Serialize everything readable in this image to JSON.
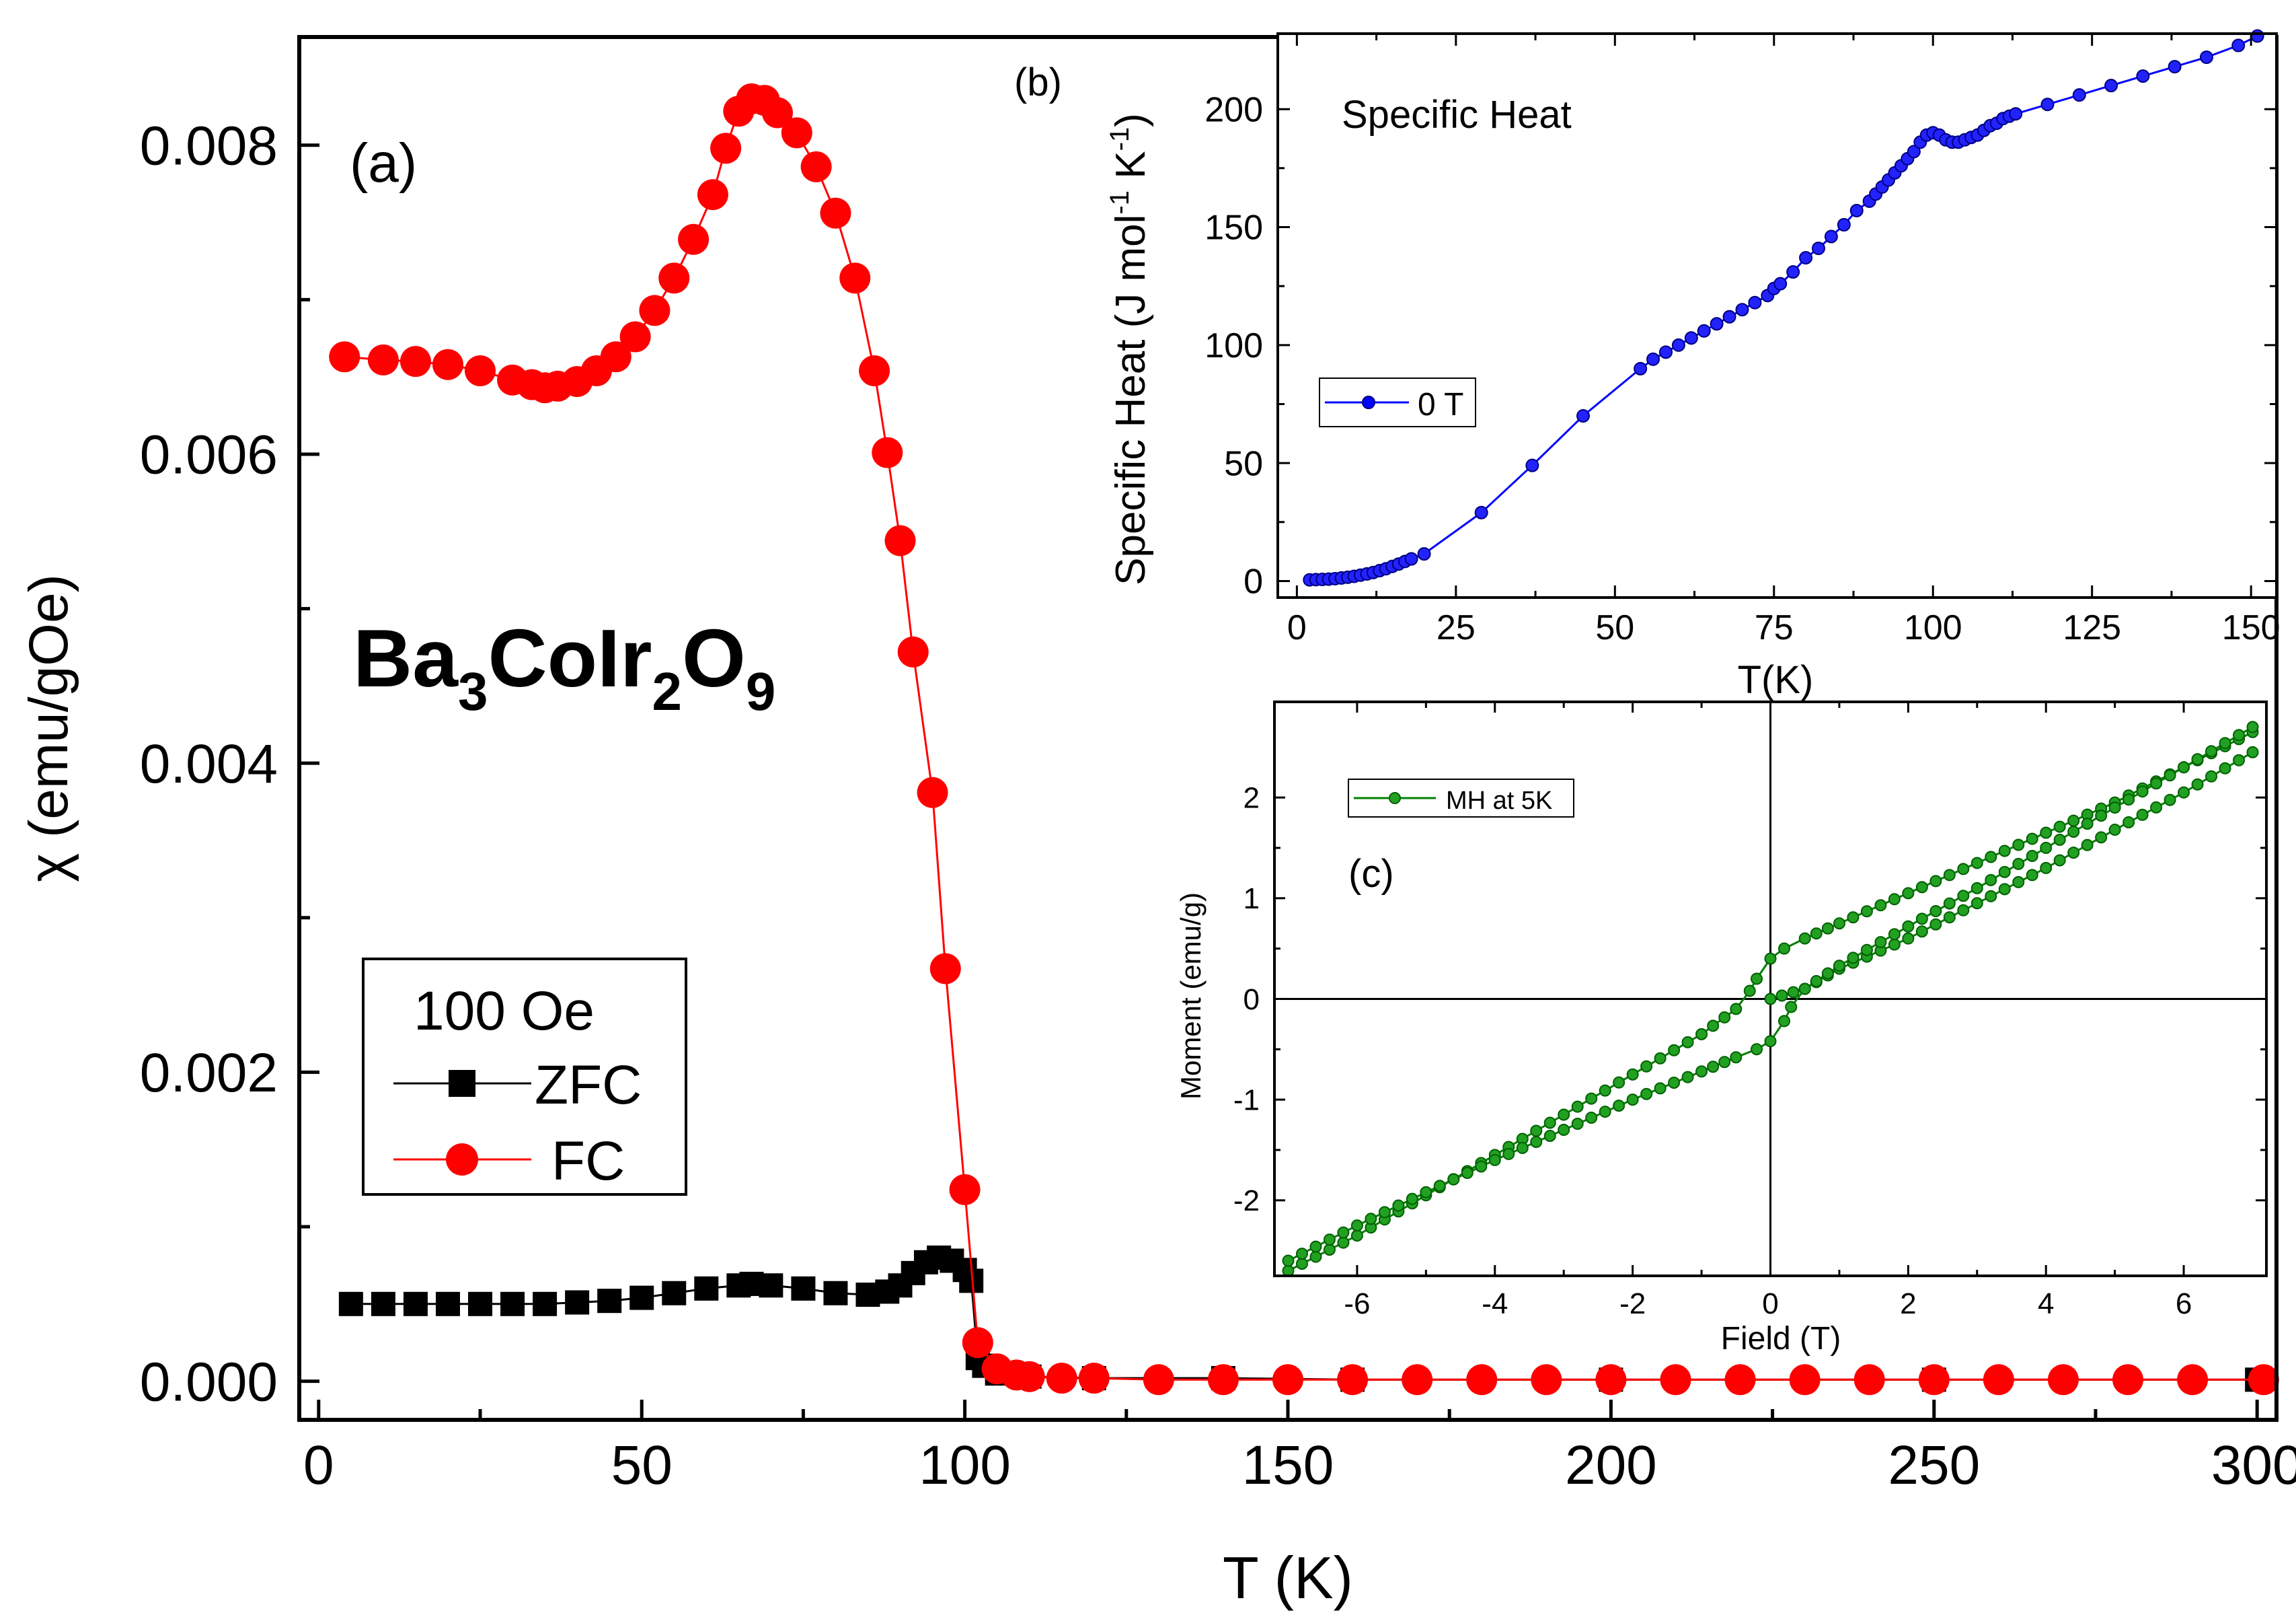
{
  "chart_data": [
    {
      "id": "a",
      "type": "scatter",
      "panel_label": "(a)",
      "compound": {
        "base_1": "Ba",
        "sub_1": "3",
        "base_2": "CoIr",
        "sub_2": "2",
        "base_3": "O",
        "sub_3": "9"
      },
      "xlabel": "T (K)",
      "ylabel": "χ (emu/gOe)",
      "xlim": [
        -3,
        303
      ],
      "ylim": [
        -0.00025,
        0.0087
      ],
      "xticks": [
        0,
        50,
        100,
        150,
        200,
        250,
        300
      ],
      "yticks": [
        0.0,
        0.002,
        0.004,
        0.006,
        0.008
      ],
      "ytick_labels": [
        "0.000",
        "0.002",
        "0.004",
        "0.006",
        "0.008"
      ],
      "legend": {
        "title": "100 Oe",
        "placement": "bottom-left",
        "entries": [
          "ZFC",
          "FC"
        ]
      },
      "series": [
        {
          "name": "ZFC",
          "color": "#000000",
          "marker": "square",
          "points": [
            [
              5,
              0.0005
            ],
            [
              10,
              0.0005
            ],
            [
              15,
              0.0005
            ],
            [
              20,
              0.0005
            ],
            [
              25,
              0.0005
            ],
            [
              30,
              0.0005
            ],
            [
              35,
              0.0005
            ],
            [
              40,
              0.00051
            ],
            [
              45,
              0.00052
            ],
            [
              50,
              0.00054
            ],
            [
              55,
              0.00057
            ],
            [
              60,
              0.0006
            ],
            [
              65,
              0.00062
            ],
            [
              67,
              0.00063
            ],
            [
              70,
              0.00062
            ],
            [
              75,
              0.0006
            ],
            [
              80,
              0.00057
            ],
            [
              85,
              0.00056
            ],
            [
              88,
              0.00058
            ],
            [
              90,
              0.00062
            ],
            [
              92,
              0.0007
            ],
            [
              94,
              0.00077
            ],
            [
              96,
              0.0008
            ],
            [
              98,
              0.00078
            ],
            [
              100,
              0.00072
            ],
            [
              101,
              0.00065
            ],
            [
              102,
              0.00015
            ],
            [
              103,
              0.0001
            ],
            [
              105,
              5e-05
            ],
            [
              110,
              3e-05
            ],
            [
              120,
              2e-05
            ],
            [
              140,
              2e-05
            ],
            [
              160,
              1e-05
            ],
            [
              200,
              1e-05
            ],
            [
              250,
              1e-05
            ],
            [
              300,
              1e-05
            ]
          ]
        },
        {
          "name": "FC",
          "color": "#ff0000",
          "marker": "circle",
          "points": [
            [
              4,
              0.00663
            ],
            [
              10,
              0.00661
            ],
            [
              15,
              0.0066
            ],
            [
              20,
              0.00658
            ],
            [
              25,
              0.00654
            ],
            [
              30,
              0.00648
            ],
            [
              33,
              0.00645
            ],
            [
              35,
              0.00643
            ],
            [
              37,
              0.00644
            ],
            [
              40,
              0.00647
            ],
            [
              43,
              0.00654
            ],
            [
              46,
              0.00663
            ],
            [
              49,
              0.00676
            ],
            [
              52,
              0.00693
            ],
            [
              55,
              0.00714
            ],
            [
              58,
              0.00739
            ],
            [
              61,
              0.00768
            ],
            [
              63,
              0.00798
            ],
            [
              65,
              0.00822
            ],
            [
              67,
              0.0083
            ],
            [
              69,
              0.00829
            ],
            [
              71,
              0.00821
            ],
            [
              74,
              0.00808
            ],
            [
              77,
              0.00786
            ],
            [
              80,
              0.00756
            ],
            [
              83,
              0.00714
            ],
            [
              86,
              0.00654
            ],
            [
              88,
              0.00601
            ],
            [
              90,
              0.00544
            ],
            [
              92,
              0.00472
            ],
            [
              95,
              0.00381
            ],
            [
              97,
              0.00267
            ],
            [
              100,
              0.00124
            ],
            [
              102,
              0.00025
            ],
            [
              105,
              8e-05
            ],
            [
              108,
              4e-05
            ],
            [
              110,
              3e-05
            ],
            [
              115,
              2e-05
            ],
            [
              120,
              2e-05
            ],
            [
              130,
              1e-05
            ],
            [
              140,
              1e-05
            ],
            [
              150,
              1e-05
            ],
            [
              160,
              1e-05
            ],
            [
              170,
              1e-05
            ],
            [
              180,
              1e-05
            ],
            [
              190,
              1e-05
            ],
            [
              200,
              1e-05
            ],
            [
              210,
              1e-05
            ],
            [
              220,
              1e-05
            ],
            [
              230,
              1e-05
            ],
            [
              240,
              1e-05
            ],
            [
              250,
              1e-05
            ],
            [
              260,
              1e-05
            ],
            [
              270,
              1e-05
            ],
            [
              280,
              1e-05
            ],
            [
              290,
              1e-05
            ],
            [
              301,
              1e-05
            ]
          ]
        }
      ]
    },
    {
      "id": "b",
      "type": "line",
      "panel_label": "(b)",
      "title": "Specific Heat",
      "xlabel": "T(K)",
      "ylabel": {
        "text": "Specific Heat (J mol",
        "sup_1": "-1",
        "mid": " K",
        "sup_2": "-1",
        "end": ")"
      },
      "xlim": [
        -3,
        154
      ],
      "ylim": [
        -7,
        232
      ],
      "xticks": [
        0,
        25,
        50,
        75,
        100,
        125,
        150
      ],
      "yticks": [
        0,
        50,
        100,
        150,
        200
      ],
      "legend": {
        "placement": "center-left",
        "entries": [
          "0 T"
        ]
      },
      "series": [
        {
          "name": "0 T",
          "color": "#0000ff",
          "marker": "circle",
          "points": [
            [
              2,
              0.5
            ],
            [
              3,
              0.6
            ],
            [
              4,
              0.7
            ],
            [
              5,
              0.8
            ],
            [
              6,
              1.0
            ],
            [
              7,
              1.3
            ],
            [
              8,
              1.6
            ],
            [
              9,
              2.0
            ],
            [
              10,
              2.5
            ],
            [
              11,
              3.0
            ],
            [
              12,
              3.6
            ],
            [
              13,
              4.4
            ],
            [
              14,
              5.2
            ],
            [
              15,
              6.2
            ],
            [
              16,
              7.2
            ],
            [
              17,
              8.3
            ],
            [
              18,
              9.4
            ],
            [
              20,
              11.5
            ],
            [
              29,
              29
            ],
            [
              37,
              49
            ],
            [
              45,
              70
            ],
            [
              54,
              90
            ],
            [
              56,
              94
            ],
            [
              58,
              97
            ],
            [
              60,
              100
            ],
            [
              62,
              103
            ],
            [
              64,
              106
            ],
            [
              66,
              109
            ],
            [
              68,
              112
            ],
            [
              70,
              115
            ],
            [
              72,
              118
            ],
            [
              74,
              121
            ],
            [
              75,
              124
            ],
            [
              76,
              126
            ],
            [
              78,
              131
            ],
            [
              80,
              137
            ],
            [
              82,
              141
            ],
            [
              84,
              146
            ],
            [
              86,
              151
            ],
            [
              88,
              157
            ],
            [
              90,
              161
            ],
            [
              91,
              164
            ],
            [
              92,
              167
            ],
            [
              93,
              170
            ],
            [
              94,
              173
            ],
            [
              95,
              176
            ],
            [
              96,
              179
            ],
            [
              97,
              182
            ],
            [
              98,
              186
            ],
            [
              99,
              189
            ],
            [
              100,
              190
            ],
            [
              101,
              189
            ],
            [
              102,
              187
            ],
            [
              103,
              186
            ],
            [
              104,
              186
            ],
            [
              105,
              187
            ],
            [
              106,
              188
            ],
            [
              107,
              189
            ],
            [
              108,
              191
            ],
            [
              109,
              193
            ],
            [
              110,
              194
            ],
            [
              111,
              196
            ],
            [
              112,
              197
            ],
            [
              113,
              198
            ],
            [
              118,
              202
            ],
            [
              123,
              206
            ],
            [
              128,
              210
            ],
            [
              133,
              214
            ],
            [
              138,
              218
            ],
            [
              143,
              222
            ],
            [
              148,
              227
            ],
            [
              151,
              231
            ]
          ]
        }
      ]
    },
    {
      "id": "c",
      "type": "line",
      "panel_label": "(c)",
      "xlabel": "Field (T)",
      "ylabel": "Moment (emu/g)",
      "xlim": [
        -7.2,
        7.2
      ],
      "ylim": [
        -2.75,
        2.95
      ],
      "xticks": [
        -6,
        -4,
        -2,
        0,
        2,
        4,
        6
      ],
      "yticks": [
        -2,
        -1,
        0,
        1,
        2
      ],
      "legend": {
        "placement": "top-left",
        "entries": [
          "MH at 5K"
        ]
      },
      "series": [
        {
          "name": "MH at 5K",
          "color": "#008000",
          "marker": "circle",
          "branches": [
            {
              "name": "initial",
              "points": [
                [
                  0,
                  0
                ],
                [
                  0.5,
                  0.1
                ],
                [
                  1,
                  0.3
                ],
                [
                  2,
                  0.6
                ],
                [
                  3,
                  0.95
                ],
                [
                  4,
                  1.3
                ],
                [
                  5,
                  1.68
                ],
                [
                  6,
                  2.05
                ],
                [
                  7,
                  2.45
                ]
              ]
            },
            {
              "name": "descending",
              "points": [
                [
                  7,
                  2.65
                ],
                [
                  6,
                  2.3
                ],
                [
                  5,
                  1.95
                ],
                [
                  4,
                  1.65
                ],
                [
                  3,
                  1.35
                ],
                [
                  2,
                  1.05
                ],
                [
                  1,
                  0.75
                ],
                [
                  0.5,
                  0.6
                ],
                [
                  0.2,
                  0.5
                ],
                [
                  0,
                  0.4
                ],
                [
                  -0.2,
                  0.2
                ],
                [
                  -0.3,
                  0.08
                ],
                [
                  -0.5,
                  -0.1
                ],
                [
                  -1,
                  -0.35
                ],
                [
                  -2,
                  -0.75
                ],
                [
                  -3,
                  -1.15
                ],
                [
                  -4,
                  -1.55
                ],
                [
                  -5,
                  -1.95
                ],
                [
                  -6,
                  -2.35
                ],
                [
                  -7,
                  -2.7
                ]
              ]
            },
            {
              "name": "ascending",
              "points": [
                [
                  -7,
                  -2.6
                ],
                [
                  -6,
                  -2.25
                ],
                [
                  -5,
                  -1.92
                ],
                [
                  -4,
                  -1.6
                ],
                [
                  -3,
                  -1.3
                ],
                [
                  -2,
                  -1.0
                ],
                [
                  -1,
                  -0.72
                ],
                [
                  -0.5,
                  -0.58
                ],
                [
                  -0.2,
                  -0.5
                ],
                [
                  0,
                  -0.42
                ],
                [
                  0.2,
                  -0.22
                ],
                [
                  0.3,
                  -0.08
                ],
                [
                  0.5,
                  0.1
                ],
                [
                  1,
                  0.33
                ],
                [
                  2,
                  0.72
                ],
                [
                  3,
                  1.1
                ],
                [
                  4,
                  1.5
                ],
                [
                  5,
                  1.9
                ],
                [
                  6,
                  2.3
                ],
                [
                  7,
                  2.7
                ]
              ]
            }
          ]
        }
      ]
    }
  ]
}
